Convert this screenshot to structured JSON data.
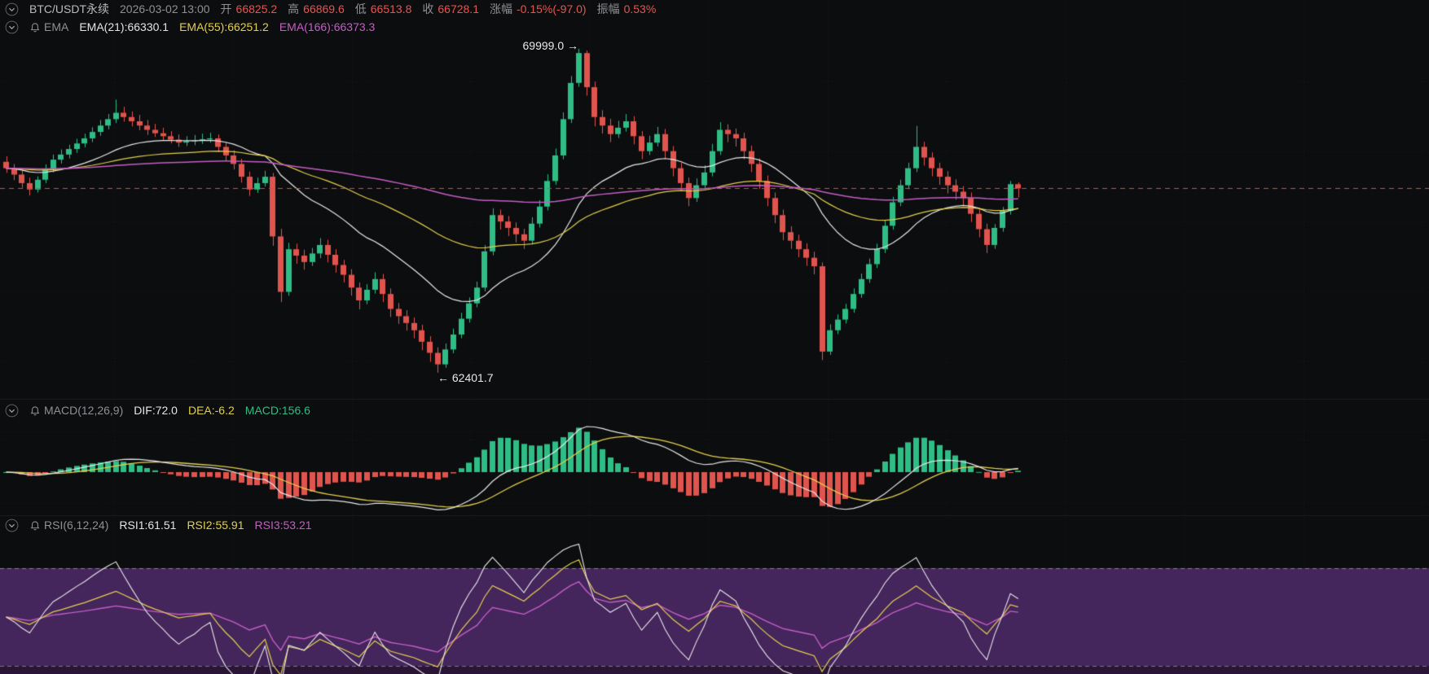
{
  "header": {
    "symbol": "BTC/USDT永续",
    "datetime": "2026-03-02 13:00",
    "open_label": "开",
    "open": "66825.2",
    "high_label": "高",
    "high": "66869.6",
    "low_label": "低",
    "low": "66513.8",
    "close_label": "收",
    "close": "66728.1",
    "change_label": "涨幅",
    "change": "-0.15%(-97.0)",
    "amplitude_label": "振幅",
    "amplitude": "0.53%"
  },
  "ema": {
    "title": "EMA",
    "ema21": "EMA(21):66330.1",
    "ema55": "EMA(55):66251.2",
    "ema166": "EMA(166):66373.3"
  },
  "macd": {
    "title": "MACD(12,26,9)",
    "dif": "DIF:72.0",
    "dea": "DEA:-6.2",
    "macd": "MACD:156.6"
  },
  "rsi": {
    "title": "RSI(6,12,24)",
    "rsi1": "RSI1:61.51",
    "rsi2": "RSI2:55.91",
    "rsi3": "RSI3:53.21"
  },
  "annotations": {
    "high": "69999.0 →",
    "low": "← 62401.7"
  },
  "colors": {
    "background": "#0c0d0f",
    "up": "#2ebd85",
    "down": "#e0544e",
    "ema21": "#e8e8e8",
    "ema55": "#e3cf4d",
    "ema166": "#c45ec4",
    "price_line": "#cf4f49",
    "macd_dif": "#e8e8e8",
    "macd_dea": "#e3cf4d",
    "rsi1": "#e8e8e8",
    "rsi2": "#e3cf4d",
    "rsi3": "#c45ec4",
    "rsi_band": "#44255c",
    "rsi_band_low": "#2a1537",
    "label_gray": "#8f9094",
    "value_red": "#e8544f"
  },
  "chart_data": {
    "type": "candlestick",
    "symbol": "BTC/USDT永续",
    "datetime": "2026-03-02 13:00",
    "last": {
      "open": 66825.2,
      "high": 66869.6,
      "low": 66513.8,
      "close": 66728.1,
      "change_pct": -0.15,
      "change_abs": -97.0,
      "amplitude_pct": 0.53
    },
    "price_line": 66728.1,
    "annotated_high": 69999.0,
    "annotated_low": 62401.7,
    "y_range": [
      62401.7,
      69999.0
    ],
    "overlays": [
      {
        "name": "EMA(21)",
        "period": 21,
        "value": 66330.1,
        "color": "#e8e8e8"
      },
      {
        "name": "EMA(55)",
        "period": 55,
        "value": 66251.2,
        "color": "#e3cf4d"
      },
      {
        "name": "EMA(166)",
        "period": 166,
        "value": 66373.3,
        "color": "#c45ec4"
      }
    ],
    "indicators": {
      "macd": {
        "params": [
          12,
          26,
          9
        ],
        "dif": 72.0,
        "dea": -6.2,
        "macd": 156.6
      },
      "rsi": {
        "params": [
          6,
          12,
          24
        ],
        "rsi1": 61.51,
        "rsi2": 55.91,
        "rsi3": 53.21,
        "band": [
          20,
          80
        ]
      }
    },
    "candles": [
      [
        67350,
        67480,
        67090,
        67200
      ],
      [
        67200,
        67300,
        66920,
        67050
      ],
      [
        67050,
        67180,
        66740,
        66850
      ],
      [
        66850,
        66980,
        66560,
        66700
      ],
      [
        66700,
        67010,
        66630,
        66930
      ],
      [
        66930,
        67290,
        66850,
        67180
      ],
      [
        67180,
        67520,
        67100,
        67400
      ],
      [
        67400,
        67640,
        67310,
        67520
      ],
      [
        67520,
        67750,
        67430,
        67650
      ],
      [
        67650,
        67890,
        67560,
        67780
      ],
      [
        67780,
        68010,
        67690,
        67900
      ],
      [
        67900,
        68160,
        67810,
        68050
      ],
      [
        68050,
        68330,
        67960,
        68200
      ],
      [
        68200,
        68470,
        68110,
        68350
      ],
      [
        68350,
        68810,
        68260,
        68500
      ],
      [
        68500,
        68640,
        68290,
        68400
      ],
      [
        68400,
        68530,
        68180,
        68300
      ],
      [
        68300,
        68450,
        68090,
        68200
      ],
      [
        68200,
        68330,
        67980,
        68100
      ],
      [
        68100,
        68240,
        67930,
        68020
      ],
      [
        68020,
        68150,
        67850,
        67950
      ],
      [
        67950,
        68070,
        67780,
        67870
      ],
      [
        67870,
        67990,
        67700,
        67800
      ],
      [
        67800,
        67950,
        67720,
        67830
      ],
      [
        67830,
        67980,
        67740,
        67850
      ],
      [
        67850,
        68010,
        67770,
        67880
      ],
      [
        67880,
        68030,
        67800,
        67900
      ],
      [
        67900,
        67990,
        67580,
        67700
      ],
      [
        67700,
        67810,
        67380,
        67500
      ],
      [
        67500,
        67620,
        67170,
        67300
      ],
      [
        67300,
        67420,
        66860,
        67000
      ],
      [
        67000,
        67120,
        66550,
        66700
      ],
      [
        66700,
        66980,
        66620,
        66850
      ],
      [
        66850,
        67140,
        66770,
        67000
      ],
      [
        67000,
        67090,
        65380,
        65600
      ],
      [
        65600,
        65780,
        64060,
        64300
      ],
      [
        64300,
        65450,
        64210,
        65300
      ],
      [
        65300,
        65430,
        64960,
        65150
      ],
      [
        65150,
        65290,
        64820,
        65000
      ],
      [
        65000,
        65330,
        64910,
        65200
      ],
      [
        65200,
        65560,
        65090,
        65400
      ],
      [
        65400,
        65520,
        64990,
        65170
      ],
      [
        65170,
        65300,
        64750,
        64930
      ],
      [
        64930,
        65050,
        64520,
        64700
      ],
      [
        64700,
        64830,
        64210,
        64400
      ],
      [
        64400,
        64520,
        63890,
        64100
      ],
      [
        64100,
        64480,
        64010,
        64350
      ],
      [
        64350,
        64760,
        64260,
        64600
      ],
      [
        64600,
        64720,
        64060,
        64250
      ],
      [
        64250,
        64380,
        63710,
        63900
      ],
      [
        63900,
        64040,
        63550,
        63730
      ],
      [
        63730,
        63870,
        63390,
        63570
      ],
      [
        63570,
        63700,
        63210,
        63400
      ],
      [
        63400,
        63530,
        62930,
        63130
      ],
      [
        63130,
        63260,
        62660,
        62870
      ],
      [
        62870,
        63000,
        62401.7,
        62600
      ],
      [
        62600,
        63090,
        62520,
        62950
      ],
      [
        62950,
        63440,
        62860,
        63300
      ],
      [
        63300,
        63810,
        63210,
        63670
      ],
      [
        63670,
        64170,
        63580,
        64030
      ],
      [
        64030,
        64540,
        63940,
        64400
      ],
      [
        64400,
        65400,
        64310,
        65250
      ],
      [
        65250,
        66260,
        65160,
        66100
      ],
      [
        66100,
        66230,
        65760,
        65950
      ],
      [
        65950,
        66080,
        65610,
        65800
      ],
      [
        65800,
        65930,
        65460,
        65650
      ],
      [
        65650,
        65780,
        65310,
        65500
      ],
      [
        65500,
        66050,
        65410,
        65900
      ],
      [
        65900,
        66450,
        65810,
        66300
      ],
      [
        66300,
        67060,
        66210,
        66900
      ],
      [
        66900,
        67660,
        66810,
        67500
      ],
      [
        67500,
        68510,
        67410,
        68350
      ],
      [
        68350,
        69360,
        68260,
        69200
      ],
      [
        69200,
        69999,
        69110,
        69900
      ],
      [
        69900,
        69960,
        68900,
        69100
      ],
      [
        69100,
        69230,
        68180,
        68400
      ],
      [
        68400,
        68560,
        68010,
        68200
      ],
      [
        68200,
        68360,
        67810,
        68000
      ],
      [
        68000,
        68310,
        67910,
        68150
      ],
      [
        68150,
        68470,
        68060,
        68300
      ],
      [
        68300,
        68420,
        67760,
        67950
      ],
      [
        67950,
        68070,
        67410,
        67600
      ],
      [
        67600,
        67960,
        67510,
        67800
      ],
      [
        67800,
        68170,
        67710,
        68000
      ],
      [
        68000,
        68120,
        67410,
        67600
      ],
      [
        67600,
        67720,
        67010,
        67200
      ],
      [
        67200,
        67330,
        66660,
        66850
      ],
      [
        66850,
        66980,
        66310,
        66500
      ],
      [
        66500,
        66960,
        66410,
        66800
      ],
      [
        66800,
        67270,
        66710,
        67100
      ],
      [
        67100,
        67770,
        67010,
        67600
      ],
      [
        67600,
        68280,
        67510,
        68100
      ],
      [
        68100,
        68230,
        67810,
        68000
      ],
      [
        68000,
        68130,
        67710,
        67900
      ],
      [
        67900,
        68030,
        67410,
        67600
      ],
      [
        67600,
        67730,
        67110,
        67300
      ],
      [
        67300,
        67430,
        66710,
        66900
      ],
      [
        66900,
        67030,
        66310,
        66500
      ],
      [
        66500,
        66630,
        65910,
        66100
      ],
      [
        66100,
        66230,
        65510,
        65700
      ],
      [
        65700,
        65840,
        65310,
        65500
      ],
      [
        65500,
        65640,
        65110,
        65300
      ],
      [
        65300,
        65440,
        64910,
        65100
      ],
      [
        65100,
        65240,
        64710,
        64900
      ],
      [
        64900,
        64990,
        62700,
        62900
      ],
      [
        62900,
        63540,
        62820,
        63400
      ],
      [
        63400,
        63770,
        63310,
        63650
      ],
      [
        63650,
        64020,
        63560,
        63900
      ],
      [
        63900,
        64380,
        63810,
        64250
      ],
      [
        64250,
        64730,
        64160,
        64600
      ],
      [
        64600,
        65080,
        64510,
        64950
      ],
      [
        64950,
        65430,
        64860,
        65300
      ],
      [
        65300,
        65980,
        65210,
        65850
      ],
      [
        65850,
        66530,
        65760,
        66400
      ],
      [
        66400,
        66930,
        66310,
        66800
      ],
      [
        66800,
        67330,
        66710,
        67200
      ],
      [
        67200,
        68190,
        67110,
        67700
      ],
      [
        67700,
        67820,
        67260,
        67450
      ],
      [
        67450,
        67570,
        67010,
        67200
      ],
      [
        67200,
        67330,
        66810,
        67000
      ],
      [
        67000,
        67130,
        66610,
        66800
      ],
      [
        66800,
        66940,
        66460,
        66650
      ],
      [
        66650,
        66780,
        66310,
        66500
      ],
      [
        66500,
        66630,
        65940,
        66130
      ],
      [
        66130,
        66260,
        65580,
        65770
      ],
      [
        65770,
        65900,
        65210,
        65400
      ],
      [
        65400,
        65890,
        65310,
        65800
      ],
      [
        65800,
        66290,
        65710,
        66200
      ],
      [
        66200,
        66900,
        66110,
        66825.2
      ],
      [
        66825.2,
        66869.6,
        66513.8,
        66728.1
      ]
    ]
  }
}
